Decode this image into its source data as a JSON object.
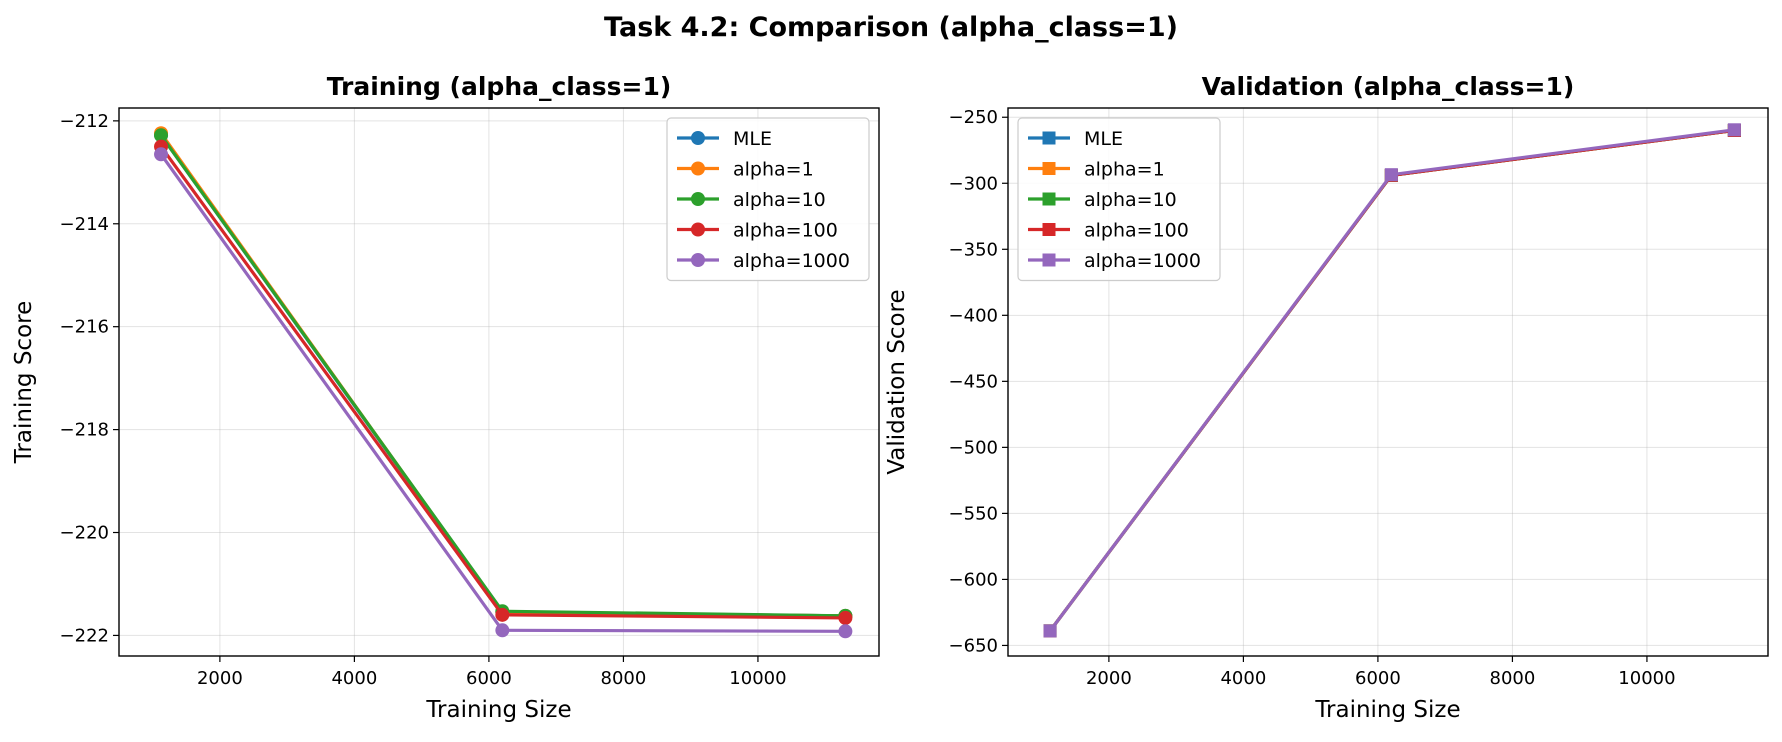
{
  "figure": {
    "title": "Task 4.2: Comparison (alpha_class=1)"
  },
  "colors": {
    "MLE": "#1f77b4",
    "alpha=1": "#ff7f0e",
    "alpha=10": "#2ca02c",
    "alpha=100": "#d62728",
    "alpha=1000": "#9467bd"
  },
  "chart_data": [
    {
      "type": "line",
      "marker": "circle",
      "title": "Training (alpha_class=1)",
      "xlabel": "Training Size",
      "ylabel": "Training Score",
      "x": [
        1125,
        6200,
        11300
      ],
      "xlim": [
        500,
        11800
      ],
      "ylim": [
        -222.4,
        -211.75
      ],
      "xticks": [
        2000,
        4000,
        6000,
        8000,
        10000
      ],
      "yticks": [
        -212,
        -214,
        -216,
        -218,
        -220,
        -222
      ],
      "xtick_labels": [
        "2000",
        "4000",
        "6000",
        "8000",
        "10000"
      ],
      "ytick_labels": [
        "−212",
        "−214",
        "−216",
        "−218",
        "−220",
        "−222"
      ],
      "grid": true,
      "legend": "top-right",
      "series": [
        {
          "name": "MLE",
          "values": [
            -212.28,
            -221.55,
            -221.62
          ]
        },
        {
          "name": "alpha=1",
          "values": [
            -212.24,
            -221.55,
            -221.62
          ]
        },
        {
          "name": "alpha=10",
          "values": [
            -212.28,
            -221.53,
            -221.62
          ]
        },
        {
          "name": "alpha=100",
          "values": [
            -212.5,
            -221.6,
            -221.66
          ]
        },
        {
          "name": "alpha=1000",
          "values": [
            -212.65,
            -221.9,
            -221.92
          ]
        }
      ]
    },
    {
      "type": "line",
      "marker": "square",
      "title": "Validation (alpha_class=1)",
      "xlabel": "Training Size",
      "ylabel": "Validation Score",
      "x": [
        1125,
        6200,
        11300
      ],
      "xlim": [
        500,
        11800
      ],
      "ylim": [
        -658,
        -243
      ],
      "xticks": [
        2000,
        4000,
        6000,
        8000,
        10000
      ],
      "yticks": [
        -250,
        -300,
        -350,
        -400,
        -450,
        -500,
        -550,
        -600,
        -650
      ],
      "xtick_labels": [
        "2000",
        "4000",
        "6000",
        "8000",
        "10000"
      ],
      "ytick_labels": [
        "−250",
        "−300",
        "−350",
        "−400",
        "−450",
        "−500",
        "−550",
        "−600",
        "−650"
      ],
      "grid": true,
      "legend": "top-left",
      "series": [
        {
          "name": "MLE",
          "values": [
            -639,
            -294,
            -260
          ]
        },
        {
          "name": "alpha=1",
          "values": [
            -639,
            -294,
            -260
          ]
        },
        {
          "name": "alpha=10",
          "values": [
            -639,
            -294,
            -260
          ]
        },
        {
          "name": "alpha=100",
          "values": [
            -639,
            -294,
            -260
          ]
        },
        {
          "name": "alpha=1000",
          "values": [
            -639,
            -293.5,
            -259.5
          ]
        }
      ]
    }
  ]
}
